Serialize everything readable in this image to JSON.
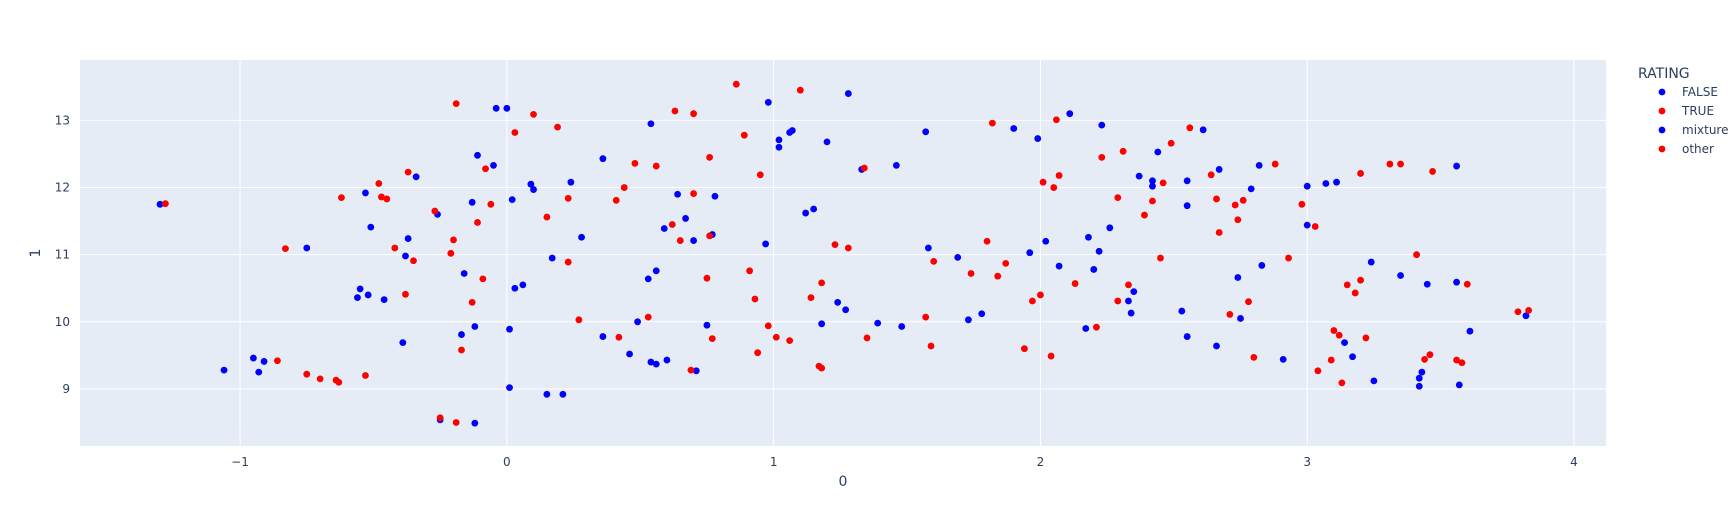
{
  "chart_data": {
    "type": "scatter",
    "title": "",
    "xlabel": "0",
    "ylabel": "1",
    "xlim": [
      -1.6,
      4.12
    ],
    "ylim": [
      8.15,
      13.9
    ],
    "x_ticks": [
      -1,
      0,
      1,
      2,
      3,
      4
    ],
    "y_ticks": [
      9,
      10,
      11,
      12,
      13
    ],
    "grid": true,
    "background_color": "#e5ecf6",
    "grid_color": "#ffffff",
    "legend": {
      "title": "RATING",
      "placement": "right"
    },
    "series": [
      {
        "name": "FALSE",
        "color": "#0000ff",
        "points": [
          [
            -1.3,
            11.75
          ],
          [
            -1.06,
            9.28
          ],
          [
            -0.95,
            9.46
          ],
          [
            -0.93,
            9.25
          ],
          [
            -0.91,
            9.41
          ],
          [
            -0.75,
            11.1
          ],
          [
            -0.56,
            10.36
          ],
          [
            -0.55,
            10.49
          ],
          [
            -0.53,
            11.92
          ],
          [
            -0.52,
            10.4
          ],
          [
            -0.51,
            11.41
          ],
          [
            -0.46,
            10.33
          ],
          [
            -0.39,
            9.69
          ],
          [
            -0.38,
            10.98
          ],
          [
            -0.37,
            11.24
          ],
          [
            -0.34,
            12.16
          ],
          [
            -0.26,
            11.6
          ],
          [
            -0.25,
            8.54
          ],
          [
            -0.17,
            9.81
          ],
          [
            -0.16,
            10.72
          ],
          [
            -0.13,
            11.78
          ],
          [
            -0.12,
            9.93
          ],
          [
            -0.12,
            8.49
          ],
          [
            -0.11,
            12.48
          ],
          [
            -0.05,
            12.33
          ],
          [
            -0.04,
            13.18
          ],
          [
            0.0,
            13.18
          ],
          [
            0.01,
            9.89
          ],
          [
            0.01,
            9.02
          ],
          [
            0.02,
            11.82
          ],
          [
            0.03,
            10.5
          ],
          [
            0.06,
            10.55
          ],
          [
            0.09,
            12.05
          ],
          [
            0.1,
            11.97
          ],
          [
            0.15,
            8.92
          ],
          [
            0.17,
            10.95
          ],
          [
            0.21,
            8.92
          ],
          [
            0.24,
            12.08
          ],
          [
            0.28,
            11.26
          ],
          [
            0.36,
            9.78
          ],
          [
            0.36,
            12.43
          ],
          [
            0.46,
            9.52
          ],
          [
            0.49,
            10.0
          ],
          [
            0.53,
            10.64
          ],
          [
            0.54,
            9.4
          ],
          [
            0.54,
            12.95
          ],
          [
            0.56,
            9.37
          ],
          [
            0.56,
            10.76
          ],
          [
            0.59,
            11.39
          ],
          [
            0.6,
            9.43
          ],
          [
            0.64,
            11.9
          ],
          [
            0.67,
            11.54
          ],
          [
            0.7,
            11.21
          ],
          [
            0.71,
            9.27
          ],
          [
            0.75,
            9.95
          ],
          [
            0.77,
            11.3
          ],
          [
            0.78,
            11.87
          ],
          [
            0.97,
            11.16
          ],
          [
            0.98,
            13.27
          ],
          [
            1.02,
            12.71
          ],
          [
            1.02,
            12.6
          ],
          [
            1.06,
            12.82
          ],
          [
            1.07,
            12.85
          ],
          [
            1.12,
            11.62
          ],
          [
            1.15,
            11.68
          ],
          [
            1.18,
            9.97
          ],
          [
            1.2,
            12.68
          ],
          [
            1.24,
            10.29
          ],
          [
            1.27,
            10.18
          ],
          [
            1.28,
            13.4
          ],
          [
            1.33,
            12.27
          ],
          [
            1.39,
            9.98
          ],
          [
            1.46,
            12.33
          ],
          [
            1.48,
            9.93
          ],
          [
            1.57,
            12.83
          ],
          [
            1.58,
            11.1
          ],
          [
            1.69,
            10.96
          ],
          [
            1.73,
            10.03
          ],
          [
            1.78,
            10.12
          ],
          [
            1.9,
            12.88
          ],
          [
            1.96,
            11.03
          ],
          [
            1.99,
            12.73
          ],
          [
            2.02,
            11.2
          ],
          [
            2.07,
            10.83
          ],
          [
            2.11,
            13.1
          ],
          [
            2.17,
            9.9
          ],
          [
            2.18,
            11.26
          ],
          [
            2.2,
            10.78
          ],
          [
            2.22,
            11.05
          ],
          [
            2.23,
            12.93
          ],
          [
            2.26,
            11.4
          ],
          [
            2.33,
            10.31
          ],
          [
            2.34,
            10.13
          ],
          [
            2.35,
            10.45
          ],
          [
            2.37,
            12.17
          ],
          [
            2.42,
            12.02
          ],
          [
            2.42,
            12.1
          ],
          [
            2.44,
            12.53
          ],
          [
            2.53,
            10.16
          ],
          [
            2.55,
            12.1
          ],
          [
            2.55,
            11.73
          ],
          [
            2.55,
            9.78
          ],
          [
            2.61,
            12.86
          ],
          [
            2.66,
            9.64
          ],
          [
            2.67,
            12.27
          ],
          [
            2.74,
            10.66
          ],
          [
            2.75,
            10.05
          ],
          [
            2.79,
            11.98
          ],
          [
            2.82,
            12.33
          ],
          [
            2.83,
            10.84
          ],
          [
            2.91,
            9.44
          ],
          [
            3.0,
            12.02
          ],
          [
            3.0,
            11.44
          ],
          [
            3.07,
            12.06
          ],
          [
            3.11,
            12.08
          ],
          [
            3.14,
            9.69
          ],
          [
            3.17,
            9.48
          ],
          [
            3.24,
            10.89
          ],
          [
            3.25,
            9.12
          ],
          [
            3.35,
            10.69
          ],
          [
            3.42,
            9.04
          ],
          [
            3.42,
            9.16
          ],
          [
            3.43,
            9.25
          ],
          [
            3.45,
            10.56
          ],
          [
            3.56,
            10.59
          ],
          [
            3.56,
            12.32
          ],
          [
            3.57,
            9.06
          ],
          [
            3.61,
            9.86
          ],
          [
            3.82,
            10.09
          ]
        ]
      },
      {
        "name": "TRUE",
        "color": "#ff0000",
        "points": [
          [
            -1.28,
            11.76
          ],
          [
            -0.86,
            9.42
          ],
          [
            -0.83,
            11.09
          ],
          [
            -0.75,
            9.22
          ],
          [
            -0.7,
            9.15
          ],
          [
            -0.64,
            9.13
          ],
          [
            -0.63,
            9.1
          ],
          [
            -0.62,
            11.85
          ],
          [
            -0.53,
            9.2
          ],
          [
            -0.48,
            12.06
          ],
          [
            -0.47,
            11.86
          ],
          [
            -0.45,
            11.83
          ],
          [
            -0.42,
            11.1
          ],
          [
            -0.38,
            10.41
          ],
          [
            -0.37,
            12.23
          ],
          [
            -0.35,
            10.91
          ],
          [
            -0.27,
            11.65
          ],
          [
            -0.25,
            8.57
          ],
          [
            -0.21,
            11.02
          ],
          [
            -0.2,
            11.22
          ],
          [
            -0.19,
            13.25
          ],
          [
            -0.19,
            8.5
          ],
          [
            -0.17,
            9.58
          ],
          [
            -0.13,
            10.29
          ],
          [
            -0.11,
            11.48
          ],
          [
            -0.09,
            10.64
          ],
          [
            -0.08,
            12.28
          ],
          [
            -0.06,
            11.75
          ],
          [
            0.03,
            12.82
          ],
          [
            0.1,
            13.09
          ],
          [
            0.15,
            11.56
          ],
          [
            0.19,
            12.9
          ],
          [
            0.23,
            10.89
          ],
          [
            0.23,
            11.84
          ],
          [
            0.27,
            10.03
          ],
          [
            0.41,
            11.81
          ],
          [
            0.42,
            9.77
          ],
          [
            0.44,
            12.0
          ],
          [
            0.48,
            12.36
          ],
          [
            0.53,
            10.07
          ],
          [
            0.56,
            12.32
          ],
          [
            0.62,
            11.45
          ],
          [
            0.63,
            13.14
          ],
          [
            0.65,
            11.21
          ],
          [
            0.69,
            9.28
          ],
          [
            0.7,
            11.91
          ],
          [
            0.7,
            13.1
          ],
          [
            0.75,
            10.65
          ],
          [
            0.76,
            12.45
          ],
          [
            0.76,
            11.28
          ],
          [
            0.77,
            9.75
          ],
          [
            0.86,
            13.54
          ],
          [
            0.89,
            12.78
          ],
          [
            0.91,
            10.76
          ],
          [
            0.93,
            10.34
          ],
          [
            0.94,
            9.54
          ],
          [
            0.95,
            12.19
          ],
          [
            0.98,
            9.94
          ],
          [
            1.01,
            9.77
          ],
          [
            1.06,
            9.72
          ],
          [
            1.1,
            13.45
          ],
          [
            1.14,
            10.36
          ],
          [
            1.17,
            9.34
          ],
          [
            1.18,
            9.31
          ],
          [
            1.18,
            10.58
          ],
          [
            1.23,
            11.15
          ],
          [
            1.28,
            11.1
          ],
          [
            1.34,
            12.29
          ],
          [
            1.35,
            9.76
          ],
          [
            1.57,
            10.07
          ],
          [
            1.59,
            9.64
          ],
          [
            1.6,
            10.9
          ],
          [
            1.74,
            10.72
          ],
          [
            1.8,
            11.2
          ],
          [
            1.82,
            12.96
          ],
          [
            1.84,
            10.68
          ],
          [
            1.87,
            10.87
          ],
          [
            1.94,
            9.6
          ],
          [
            1.97,
            10.31
          ],
          [
            2.0,
            10.4
          ],
          [
            2.01,
            12.08
          ],
          [
            2.04,
            9.49
          ],
          [
            2.05,
            12.0
          ],
          [
            2.06,
            13.01
          ],
          [
            2.07,
            12.18
          ],
          [
            2.13,
            10.57
          ],
          [
            2.21,
            9.92
          ],
          [
            2.23,
            12.45
          ],
          [
            2.29,
            10.31
          ],
          [
            2.29,
            11.85
          ],
          [
            2.31,
            12.54
          ],
          [
            2.33,
            10.55
          ],
          [
            2.39,
            11.59
          ],
          [
            2.42,
            11.8
          ],
          [
            2.45,
            10.95
          ],
          [
            2.46,
            12.07
          ],
          [
            2.49,
            12.66
          ],
          [
            2.56,
            12.89
          ],
          [
            2.64,
            12.19
          ],
          [
            2.66,
            11.83
          ],
          [
            2.67,
            11.33
          ],
          [
            2.71,
            10.11
          ],
          [
            2.73,
            11.74
          ],
          [
            2.74,
            11.52
          ],
          [
            2.76,
            11.81
          ],
          [
            2.78,
            10.3
          ],
          [
            2.8,
            9.47
          ],
          [
            2.88,
            12.35
          ],
          [
            2.93,
            10.95
          ],
          [
            2.98,
            11.75
          ],
          [
            3.03,
            11.42
          ],
          [
            3.04,
            9.27
          ],
          [
            3.09,
            9.43
          ],
          [
            3.1,
            9.87
          ],
          [
            3.12,
            9.8
          ],
          [
            3.13,
            9.09
          ],
          [
            3.15,
            10.55
          ],
          [
            3.18,
            10.43
          ],
          [
            3.2,
            12.21
          ],
          [
            3.2,
            10.62
          ],
          [
            3.22,
            9.76
          ],
          [
            3.31,
            12.35
          ],
          [
            3.35,
            12.35
          ],
          [
            3.41,
            11.0
          ],
          [
            3.44,
            9.44
          ],
          [
            3.46,
            9.51
          ],
          [
            3.47,
            12.24
          ],
          [
            3.56,
            9.43
          ],
          [
            3.58,
            9.39
          ],
          [
            3.6,
            10.56
          ],
          [
            3.79,
            10.15
          ],
          [
            3.83,
            10.17
          ]
        ]
      },
      {
        "name": "mixture",
        "color": "#0000ff",
        "points": []
      },
      {
        "name": "other",
        "color": "#ff0000",
        "points": []
      }
    ]
  }
}
